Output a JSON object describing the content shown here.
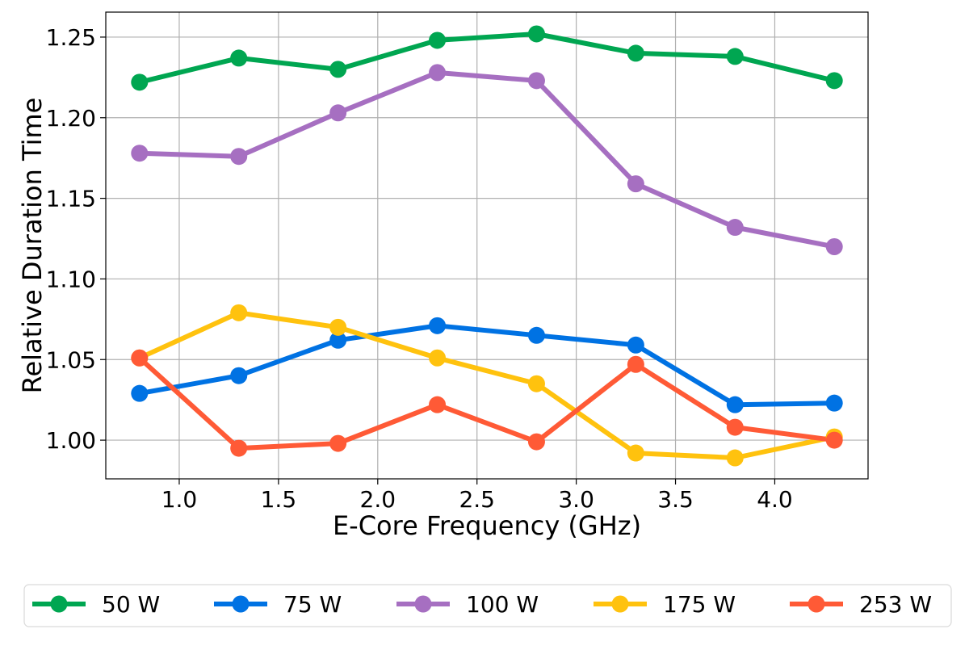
{
  "chart_data": {
    "type": "line",
    "title": "",
    "xlabel": "E-Core Frequency (GHz)",
    "ylabel": "Relative Duration Time",
    "x": [
      0.8,
      1.3,
      1.8,
      2.3,
      2.8,
      3.3,
      3.8,
      4.3
    ],
    "xlim": [
      0.63,
      4.47
    ],
    "ylim": [
      0.976,
      1.2655
    ],
    "xticks": [
      "1.0",
      "1.5",
      "2.0",
      "2.5",
      "3.0",
      "3.5",
      "4.0"
    ],
    "yticks": [
      "1.00",
      "1.05",
      "1.10",
      "1.15",
      "1.20",
      "1.25"
    ],
    "grid": true,
    "legend_position": "bottom",
    "series": [
      {
        "name": "50 W",
        "color": "#00a651",
        "values": [
          1.222,
          1.237,
          1.23,
          1.248,
          1.252,
          1.24,
          1.238,
          1.223
        ]
      },
      {
        "name": "75 W",
        "color": "#0072e3",
        "values": [
          1.029,
          1.04,
          1.062,
          1.071,
          1.065,
          1.059,
          1.022,
          1.023
        ]
      },
      {
        "name": "100 W",
        "color": "#a66fc1",
        "values": [
          1.178,
          1.176,
          1.203,
          1.228,
          1.223,
          1.159,
          1.132,
          1.12
        ]
      },
      {
        "name": "175 W",
        "color": "#ffc20e",
        "values": [
          1.051,
          1.079,
          1.07,
          1.051,
          1.035,
          0.992,
          0.989,
          1.002
        ]
      },
      {
        "name": "253 W",
        "color": "#ff5a36",
        "values": [
          1.051,
          0.995,
          0.998,
          1.022,
          0.999,
          1.047,
          1.008,
          1.0
        ]
      }
    ]
  }
}
